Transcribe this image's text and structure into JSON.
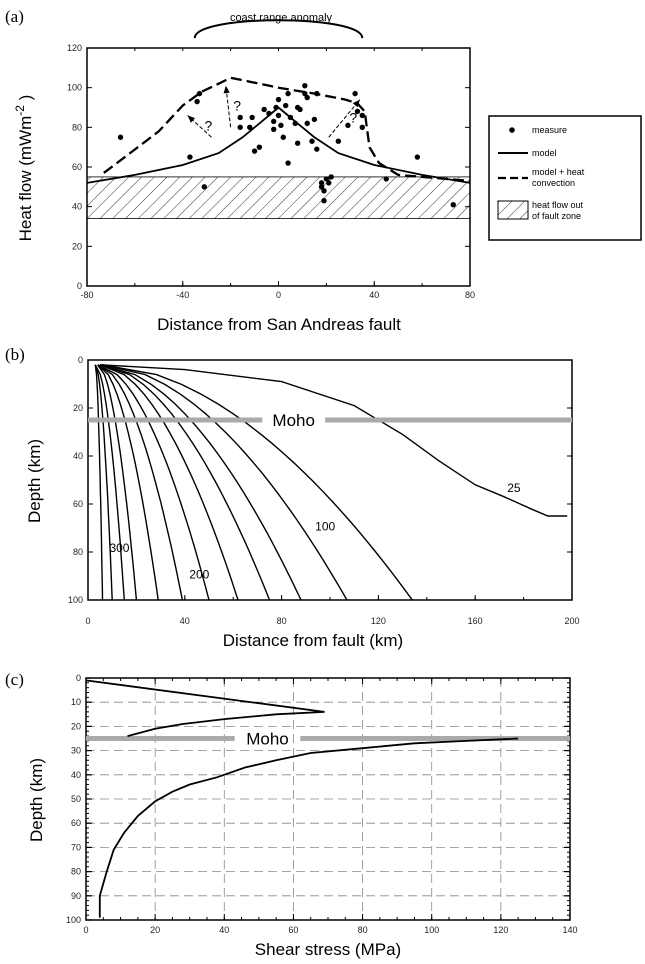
{
  "chart_data": [
    {
      "panel": "(a)",
      "type": "scatter",
      "title": "coast range anomaly",
      "xlabel": "Distance from San Andreas fault",
      "ylabel": "Heat flow  (mWm",
      "ylabel_exp": "-2",
      "ylabel_close": " )",
      "xlim": [
        -80,
        80
      ],
      "ylim": [
        0,
        120
      ],
      "xticks": [
        "-80",
        "-40",
        "0",
        "40",
        "80"
      ],
      "yticks": [
        "0",
        "20",
        "40",
        "60",
        "80",
        "100",
        "120"
      ],
      "band": [
        34,
        55
      ],
      "question_mark": "?",
      "legend": {
        "placement": "right",
        "entries": [
          {
            "symbol": "dot",
            "label": "measure"
          },
          {
            "symbol": "solid",
            "label": "model"
          },
          {
            "symbol": "dashed",
            "label": "model + heat\nconvection"
          },
          {
            "symbol": "hatch",
            "label": "heat flow out\nof fault zone"
          }
        ]
      },
      "series": [
        {
          "name": "measure",
          "style": "dot",
          "points": [
            [
              -66,
              75
            ],
            [
              -37,
              65
            ],
            [
              -34,
              93
            ],
            [
              -33,
              97
            ],
            [
              -31,
              50
            ],
            [
              -16,
              85
            ],
            [
              -16,
              80
            ],
            [
              -12,
              80
            ],
            [
              -11,
              85
            ],
            [
              -10,
              68
            ],
            [
              -8,
              70
            ],
            [
              -6,
              89
            ],
            [
              -4,
              87
            ],
            [
              -2,
              83
            ],
            [
              -2,
              79
            ],
            [
              -1,
              90
            ],
            [
              0,
              94
            ],
            [
              0,
              86
            ],
            [
              1,
              81
            ],
            [
              2,
              75
            ],
            [
              3,
              91
            ],
            [
              4,
              62
            ],
            [
              4,
              97
            ],
            [
              5,
              85
            ],
            [
              7,
              82
            ],
            [
              8,
              90
            ],
            [
              8,
              72
            ],
            [
              9,
              89
            ],
            [
              11,
              101
            ],
            [
              11,
              97
            ],
            [
              12,
              95
            ],
            [
              12,
              82
            ],
            [
              14,
              73
            ],
            [
              15,
              84
            ],
            [
              16,
              97
            ],
            [
              16,
              69
            ],
            [
              18,
              52
            ],
            [
              18,
              50
            ],
            [
              19,
              43
            ],
            [
              19,
              48
            ],
            [
              20,
              54
            ],
            [
              21,
              52
            ],
            [
              22,
              55
            ],
            [
              25,
              73
            ],
            [
              29,
              81
            ],
            [
              32,
              97
            ],
            [
              33,
              88
            ],
            [
              35,
              86
            ],
            [
              35,
              80
            ],
            [
              45,
              54
            ],
            [
              58,
              65
            ],
            [
              73,
              41
            ]
          ]
        },
        {
          "name": "model",
          "style": "solid",
          "points": [
            [
              -80,
              52
            ],
            [
              -60,
              56
            ],
            [
              -40,
              61
            ],
            [
              -25,
              67
            ],
            [
              -15,
              75
            ],
            [
              -8,
              82
            ],
            [
              -3,
              87
            ],
            [
              0,
              90
            ],
            [
              3,
              87
            ],
            [
              8,
              82
            ],
            [
              15,
              75
            ],
            [
              25,
              67
            ],
            [
              40,
              61
            ],
            [
              60,
              56
            ],
            [
              80,
              52
            ]
          ]
        },
        {
          "name": "model + heat convection",
          "style": "dashed",
          "points": [
            [
              -73,
              57
            ],
            [
              -62,
              67
            ],
            [
              -50,
              78
            ],
            [
              -40,
              91
            ],
            [
              -32,
              98
            ],
            [
              -25,
              102
            ],
            [
              -20,
              105
            ],
            [
              -12,
              103
            ],
            [
              0,
              100
            ],
            [
              15,
              97
            ],
            [
              28,
              94
            ],
            [
              33,
              92
            ],
            [
              36,
              88
            ],
            [
              38,
              70
            ],
            [
              42,
              62
            ],
            [
              50,
              56
            ],
            [
              80,
              53
            ]
          ]
        }
      ],
      "arrows": [
        {
          "from": [
            -28,
            75
          ],
          "to": [
            -38,
            86
          ],
          "label": "?"
        },
        {
          "from": [
            -20,
            80
          ],
          "to": [
            -22,
            101
          ],
          "label": "?"
        },
        {
          "from": [
            21,
            75
          ],
          "to": [
            34,
            94
          ],
          "label": "?"
        }
      ],
      "anomaly_arc": {
        "x0": -35,
        "x1": 35,
        "yBase": 125,
        "yPeak": 134
      }
    },
    {
      "panel": "(b)",
      "type": "line",
      "xlabel": "Distance from fault (km)",
      "ylabel": "Depth (km)",
      "xlim": [
        0,
        200
      ],
      "ylim": [
        0,
        100
      ],
      "y_inverted": true,
      "xticks": [
        "0",
        "40",
        "80",
        "120",
        "160",
        "200"
      ],
      "yticks": [
        "0",
        "20",
        "40",
        "60",
        "80",
        "100"
      ],
      "moho": {
        "label": "Moho",
        "depth": 25
      },
      "contour_labels": [
        {
          "text": "25",
          "x": 176,
          "y": 55
        },
        {
          "text": "100",
          "x": 98,
          "y": 71
        },
        {
          "text": "300",
          "x": 13,
          "y": 80
        },
        {
          "text": "200",
          "x": 46,
          "y": 91
        }
      ],
      "contours": [
        {
          "start": 3,
          "end": 6
        },
        {
          "start": 3,
          "end": 10
        },
        {
          "start": 3,
          "end": 15
        },
        {
          "start": 4,
          "end": 20
        },
        {
          "start": 4,
          "end": 29
        },
        {
          "start": 4,
          "end": 39
        },
        {
          "start": 4,
          "end": 50
        },
        {
          "start": 5,
          "end": 62
        },
        {
          "start": 5,
          "end": 75
        },
        {
          "start": 5,
          "end": 88
        },
        {
          "start": 6,
          "end": 107
        },
        {
          "start": 6,
          "end": 134
        }
      ],
      "outer_contour": [
        [
          5,
          2
        ],
        [
          40,
          4
        ],
        [
          80,
          9
        ],
        [
          110,
          19
        ],
        [
          130,
          31
        ],
        [
          145,
          42
        ],
        [
          160,
          52
        ],
        [
          172,
          57
        ],
        [
          183,
          62
        ],
        [
          190,
          65
        ],
        [
          198,
          65
        ]
      ]
    },
    {
      "panel": "(c)",
      "type": "line",
      "xlabel": "Shear stress  (MPa)",
      "ylabel": "Depth  (km)",
      "xlim": [
        0,
        140
      ],
      "ylim": [
        0,
        100
      ],
      "y_inverted": true,
      "xticks": [
        "0",
        "20",
        "40",
        "60",
        "80",
        "100",
        "120",
        "140"
      ],
      "yticks": [
        "0",
        "10",
        "20",
        "30",
        "40",
        "50",
        "60",
        "70",
        "80",
        "90",
        "100"
      ],
      "moho": {
        "label": "Moho",
        "depth": 25
      },
      "series": [
        {
          "name": "profile",
          "style": "solid",
          "points": [
            [
              0,
              1
            ],
            [
              69,
              14
            ],
            [
              55,
              15
            ],
            [
              40,
              17
            ],
            [
              28,
              19
            ],
            [
              20,
              21
            ],
            [
              12,
              24
            ]
          ]
        },
        {
          "name": "lower",
          "style": "solid",
          "points": [
            [
              125,
              25
            ],
            [
              110,
              26
            ],
            [
              95,
              27
            ],
            [
              80,
              29
            ],
            [
              65,
              31
            ],
            [
              55,
              34
            ],
            [
              46,
              37
            ],
            [
              38,
              41
            ],
            [
              30,
              44
            ],
            [
              25,
              47
            ],
            [
              20,
              51
            ],
            [
              15,
              57
            ],
            [
              11,
              64
            ],
            [
              8,
              71
            ],
            [
              6,
              80
            ],
            [
              4,
              90
            ],
            [
              4,
              99
            ]
          ]
        }
      ]
    }
  ]
}
